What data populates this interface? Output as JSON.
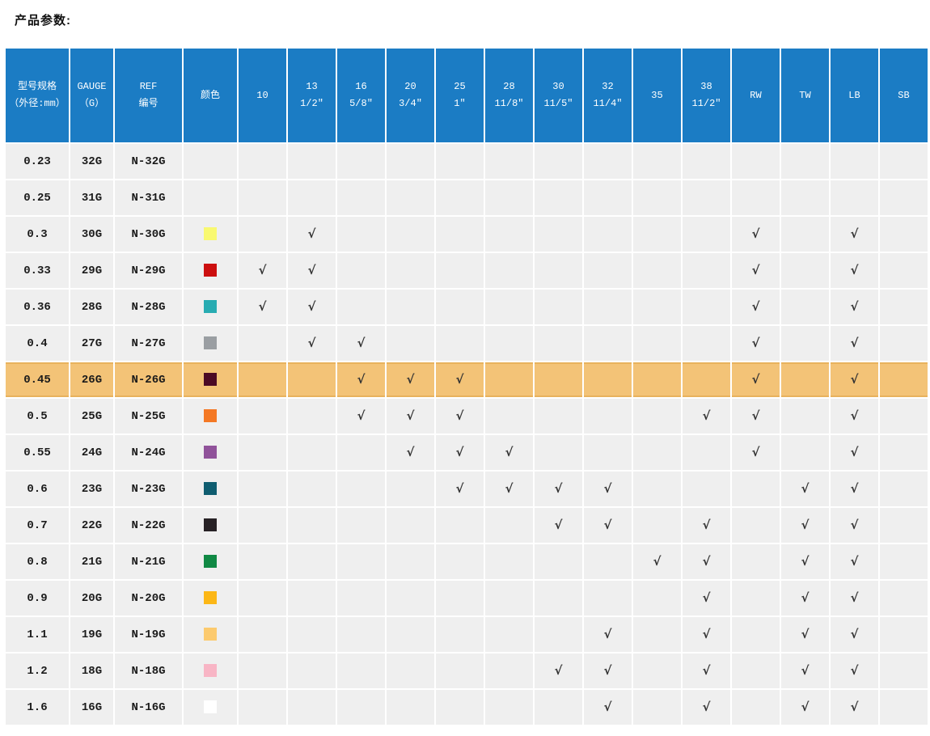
{
  "page_title": "产品参数:",
  "colors": {
    "header_bg": "#1B7CC4",
    "header_text": "#FFFFFF",
    "cell_bg": "#EFEFEF",
    "grid_gap": "#FFFFFF",
    "highlight_row_bg": "#F3C377",
    "highlight_row_border": "#E8B25D",
    "check_color": "#333333",
    "body_text": "#1A1A1A"
  },
  "check_glyph": "√",
  "table": {
    "fixed_headers": [
      {
        "key": "model",
        "line1": "型号规格",
        "line2": "（外径:mm）"
      },
      {
        "key": "gauge",
        "line1": "GAUGE",
        "line2": "（G）"
      },
      {
        "key": "ref",
        "line1": "REF",
        "line2": "编号"
      },
      {
        "key": "color",
        "line1": "颜色",
        "line2": ""
      }
    ],
    "size_columns": [
      {
        "key": "10",
        "line1": "10",
        "line2": ""
      },
      {
        "key": "13",
        "line1": "13",
        "line2": "1/2″"
      },
      {
        "key": "16",
        "line1": "16",
        "line2": "5/8″"
      },
      {
        "key": "20",
        "line1": "20",
        "line2": "3/4″"
      },
      {
        "key": "25",
        "line1": "25",
        "line2": "1″"
      },
      {
        "key": "28",
        "line1": "28",
        "line2": "11/8″"
      },
      {
        "key": "30",
        "line1": "30",
        "line2": "11/5″"
      },
      {
        "key": "32",
        "line1": "32",
        "line2": "11/4″"
      },
      {
        "key": "35",
        "line1": "35",
        "line2": ""
      },
      {
        "key": "38",
        "line1": "38",
        "line2": "11/2″"
      },
      {
        "key": "RW",
        "line1": "RW",
        "line2": ""
      },
      {
        "key": "TW",
        "line1": "TW",
        "line2": ""
      },
      {
        "key": "LB",
        "line1": "LB",
        "line2": ""
      },
      {
        "key": "SB",
        "line1": "SB",
        "line2": ""
      }
    ],
    "rows": [
      {
        "model": "0.23",
        "gauge": "32G",
        "ref": "N-32G",
        "color": null,
        "highlighted": false,
        "checks": []
      },
      {
        "model": "0.25",
        "gauge": "31G",
        "ref": "N-31G",
        "color": null,
        "highlighted": false,
        "checks": []
      },
      {
        "model": "0.3",
        "gauge": "30G",
        "ref": "N-30G",
        "color": "#F9F970",
        "highlighted": false,
        "checks": [
          "13",
          "RW",
          "LB"
        ]
      },
      {
        "model": "0.33",
        "gauge": "29G",
        "ref": "N-29G",
        "color": "#CC0F0F",
        "highlighted": false,
        "checks": [
          "10",
          "13",
          "RW",
          "LB"
        ]
      },
      {
        "model": "0.36",
        "gauge": "28G",
        "ref": "N-28G",
        "color": "#28ACB2",
        "highlighted": false,
        "checks": [
          "10",
          "13",
          "RW",
          "LB"
        ]
      },
      {
        "model": "0.4",
        "gauge": "27G",
        "ref": "N-27G",
        "color": "#9A9EA2",
        "highlighted": false,
        "checks": [
          "13",
          "16",
          "RW",
          "LB"
        ]
      },
      {
        "model": "0.45",
        "gauge": "26G",
        "ref": "N-26G",
        "color": "#4C0A24",
        "highlighted": true,
        "checks": [
          "16",
          "20",
          "25",
          "RW",
          "LB"
        ]
      },
      {
        "model": "0.5",
        "gauge": "25G",
        "ref": "N-25G",
        "color": "#F47824",
        "highlighted": false,
        "checks": [
          "16",
          "20",
          "25",
          "38",
          "RW",
          "LB"
        ]
      },
      {
        "model": "0.55",
        "gauge": "24G",
        "ref": "N-24G",
        "color": "#90529A",
        "highlighted": false,
        "checks": [
          "20",
          "25",
          "28",
          "RW",
          "LB"
        ]
      },
      {
        "model": "0.6",
        "gauge": "23G",
        "ref": "N-23G",
        "color": "#0F5D70",
        "highlighted": false,
        "checks": [
          "25",
          "28",
          "30",
          "32",
          "TW",
          "LB"
        ]
      },
      {
        "model": "0.7",
        "gauge": "22G",
        "ref": "N-22G",
        "color": "#272125",
        "highlighted": false,
        "checks": [
          "30",
          "32",
          "38",
          "TW",
          "LB"
        ]
      },
      {
        "model": "0.8",
        "gauge": "21G",
        "ref": "N-21G",
        "color": "#108944",
        "highlighted": false,
        "checks": [
          "35",
          "38",
          "TW",
          "LB"
        ]
      },
      {
        "model": "0.9",
        "gauge": "20G",
        "ref": "N-20G",
        "color": "#FCB716",
        "highlighted": false,
        "checks": [
          "38",
          "TW",
          "LB"
        ]
      },
      {
        "model": "1.1",
        "gauge": "19G",
        "ref": "N-19G",
        "color": "#FCCA6E",
        "highlighted": false,
        "checks": [
          "32",
          "38",
          "TW",
          "LB"
        ]
      },
      {
        "model": "1.2",
        "gauge": "18G",
        "ref": "N-18G",
        "color": "#F8B5C5",
        "highlighted": false,
        "checks": [
          "30",
          "32",
          "38",
          "TW",
          "LB"
        ]
      },
      {
        "model": "1.6",
        "gauge": "16G",
        "ref": "N-16G",
        "color": "#FFFFFF",
        "highlighted": false,
        "checks": [
          "32",
          "38",
          "TW",
          "LB"
        ]
      }
    ]
  }
}
